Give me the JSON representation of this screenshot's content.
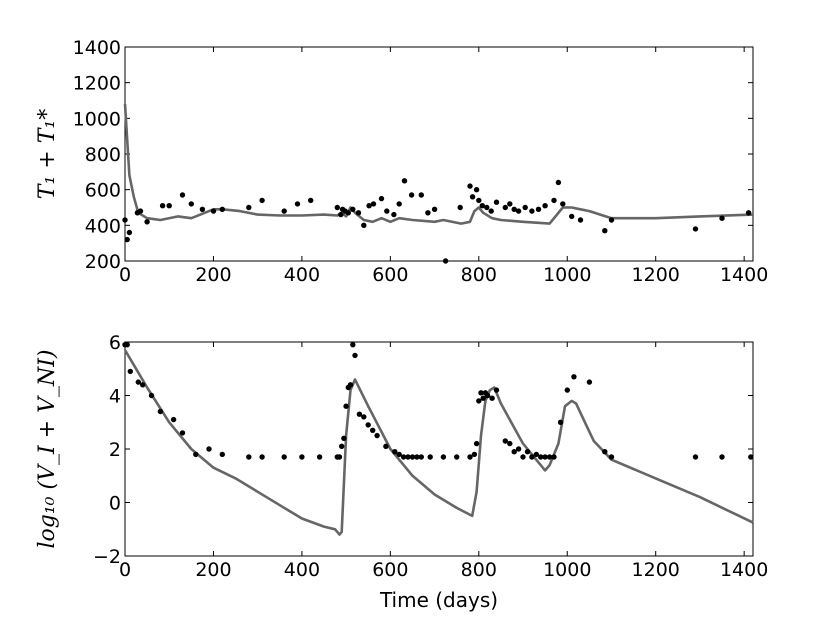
{
  "chart_data": [
    {
      "type": "scatter",
      "title": "",
      "xlabel": "",
      "ylabel": "T₁ + T₁*",
      "xlim": [
        0,
        1420
      ],
      "ylim": [
        200,
        1400
      ],
      "xticks": [
        "0",
        "200",
        "400",
        "600",
        "800",
        "1000",
        "1200",
        "1400"
      ],
      "yticks": [
        "200",
        "400",
        "600",
        "800",
        "1000",
        "1200",
        "1400"
      ],
      "grid": false,
      "series": [
        {
          "kind": "points",
          "color": "#000000",
          "x": [
            0,
            5,
            10,
            28,
            35,
            50,
            85,
            100,
            130,
            150,
            175,
            200,
            220,
            280,
            310,
            360,
            390,
            420,
            480,
            488,
            492,
            498,
            505,
            515,
            528,
            540,
            552,
            562,
            580,
            592,
            608,
            620,
            632,
            648,
            670,
            685,
            700,
            725,
            758,
            780,
            786,
            795,
            800,
            808,
            818,
            828,
            840,
            860,
            870,
            880,
            890,
            905,
            920,
            935,
            950,
            970,
            980,
            990,
            1010,
            1030,
            1085,
            1100,
            1290,
            1350,
            1410
          ],
          "y": [
            430,
            320,
            360,
            470,
            480,
            420,
            510,
            510,
            570,
            520,
            490,
            480,
            490,
            500,
            540,
            480,
            520,
            540,
            500,
            460,
            490,
            480,
            470,
            490,
            470,
            400,
            510,
            520,
            550,
            480,
            460,
            520,
            650,
            570,
            570,
            470,
            490,
            200,
            500,
            620,
            560,
            600,
            540,
            510,
            500,
            480,
            530,
            500,
            520,
            490,
            480,
            500,
            480,
            490,
            510,
            540,
            640,
            520,
            450,
            430,
            370,
            430,
            380,
            440,
            470
          ]
        },
        {
          "kind": "line",
          "color": "#666666",
          "x": [
            0,
            10,
            20,
            30,
            50,
            80,
            120,
            150,
            200,
            220,
            260,
            300,
            350,
            400,
            450,
            480,
            490,
            500,
            510,
            520,
            540,
            560,
            580,
            600,
            620,
            650,
            700,
            720,
            760,
            780,
            790,
            800,
            810,
            830,
            850,
            900,
            960,
            990,
            1010,
            1030,
            1050,
            1100,
            1200,
            1300,
            1420
          ],
          "y": [
            1080,
            680,
            560,
            470,
            440,
            430,
            450,
            440,
            490,
            490,
            480,
            460,
            455,
            455,
            460,
            455,
            470,
            450,
            500,
            470,
            430,
            420,
            440,
            420,
            440,
            430,
            420,
            430,
            410,
            420,
            480,
            500,
            470,
            440,
            430,
            420,
            410,
            500,
            500,
            490,
            480,
            440,
            440,
            450,
            460
          ]
        }
      ]
    },
    {
      "type": "scatter",
      "title": "",
      "xlabel": "Time (days)",
      "ylabel": "log₁₀ (V_I + V_NI)",
      "xlim": [
        0,
        1420
      ],
      "ylim": [
        -2,
        6
      ],
      "xticks": [
        "0",
        "200",
        "400",
        "600",
        "800",
        "1000",
        "1200",
        "1400"
      ],
      "yticks": [
        "−2",
        "0",
        "2",
        "4",
        "6"
      ],
      "grid": false,
      "series": [
        {
          "kind": "points",
          "color": "#000000",
          "x": [
            0,
            5,
            12,
            30,
            40,
            60,
            80,
            110,
            130,
            160,
            190,
            220,
            280,
            310,
            360,
            400,
            440,
            480,
            485,
            490,
            495,
            500,
            505,
            510,
            515,
            520,
            530,
            540,
            550,
            560,
            570,
            590,
            610,
            620,
            630,
            640,
            650,
            660,
            670,
            690,
            720,
            750,
            780,
            790,
            795,
            800,
            805,
            810,
            815,
            820,
            830,
            840,
            860,
            870,
            880,
            890,
            900,
            910,
            920,
            930,
            940,
            950,
            960,
            970,
            985,
            1000,
            1015,
            1050,
            1085,
            1100,
            1290,
            1350,
            1415
          ],
          "y": [
            5.9,
            5.9,
            4.9,
            4.5,
            4.4,
            4.0,
            3.4,
            3.1,
            2.6,
            1.8,
            2.0,
            1.8,
            1.7,
            1.7,
            1.7,
            1.7,
            1.7,
            1.7,
            1.7,
            2.1,
            2.4,
            3.6,
            4.3,
            4.4,
            5.9,
            5.5,
            3.3,
            3.2,
            2.9,
            2.7,
            2.5,
            2.1,
            1.9,
            1.8,
            1.7,
            1.7,
            1.7,
            1.7,
            1.7,
            1.7,
            1.7,
            1.7,
            1.7,
            1.8,
            2.2,
            3.8,
            4.1,
            3.9,
            4.1,
            4.0,
            3.9,
            4.2,
            2.3,
            2.2,
            1.9,
            2.0,
            1.7,
            1.9,
            1.7,
            1.8,
            1.7,
            1.7,
            1.7,
            1.7,
            3.0,
            4.2,
            4.7,
            4.5,
            1.9,
            1.7,
            1.7,
            1.7,
            1.7
          ]
        },
        {
          "kind": "line",
          "color": "#666666",
          "x": [
            0,
            50,
            100,
            150,
            200,
            250,
            300,
            350,
            400,
            450,
            475,
            485,
            490,
            500,
            510,
            520,
            550,
            600,
            650,
            700,
            750,
            785,
            795,
            805,
            815,
            825,
            835,
            850,
            900,
            950,
            960,
            980,
            995,
            1010,
            1020,
            1040,
            1060,
            1100,
            1200,
            1300,
            1420
          ],
          "y": [
            5.7,
            4.3,
            3.0,
            2.0,
            1.3,
            0.9,
            0.4,
            -0.1,
            -0.6,
            -0.9,
            -1.0,
            -1.2,
            -1.1,
            2.5,
            4.2,
            4.6,
            3.6,
            2.0,
            1.0,
            0.3,
            -0.2,
            -0.5,
            0.4,
            2.5,
            3.8,
            4.2,
            4.3,
            3.7,
            2.2,
            1.2,
            1.4,
            2.2,
            3.6,
            3.8,
            3.7,
            3.0,
            2.3,
            1.6,
            0.9,
            0.2,
            -0.75
          ]
        }
      ]
    }
  ]
}
